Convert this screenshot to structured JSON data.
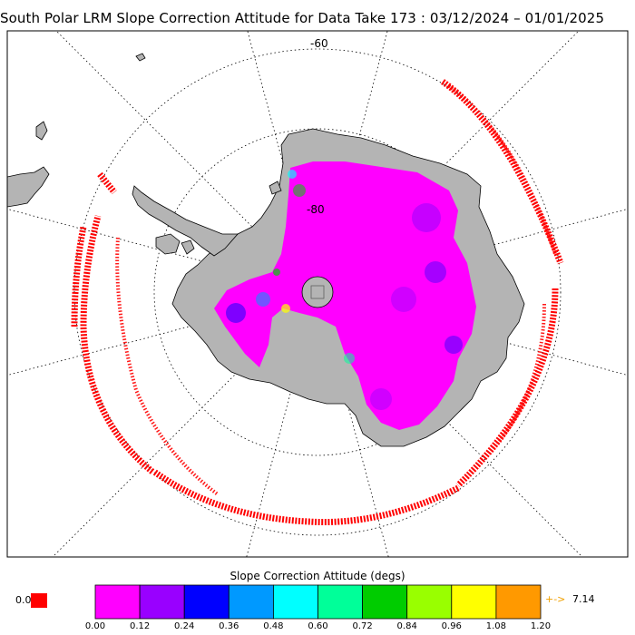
{
  "title": "South Polar LRM Slope Correction Attitude for Data Take 173 : 03/12/2024 – 01/01/2025",
  "map": {
    "projection": "south-polar-stereographic",
    "lat_labels": [
      "-60",
      "-80"
    ],
    "colors": {
      "land": "#b4b4b4",
      "coastline": "#000000",
      "ocean": "#ffffff",
      "tracks": "#ff0000",
      "grid": "#000000"
    }
  },
  "colorbar": {
    "title": "Slope Correction Attitude (degs)",
    "ticks": [
      "0.00",
      "0.12",
      "0.24",
      "0.36",
      "0.48",
      "0.60",
      "0.72",
      "0.84",
      "0.96",
      "1.08",
      "1.20"
    ],
    "colors": [
      "#ff00ff",
      "#9900ff",
      "#0000ff",
      "#0099ff",
      "#00ffff",
      "#00ff99",
      "#00cc00",
      "#99ff00",
      "#ffff00",
      "#ff9900"
    ],
    "zero_label": "0.0",
    "zero_color": "#ff0000",
    "over_arrow": "+->",
    "over_value": "7.14",
    "over_color": "#f0a000"
  }
}
